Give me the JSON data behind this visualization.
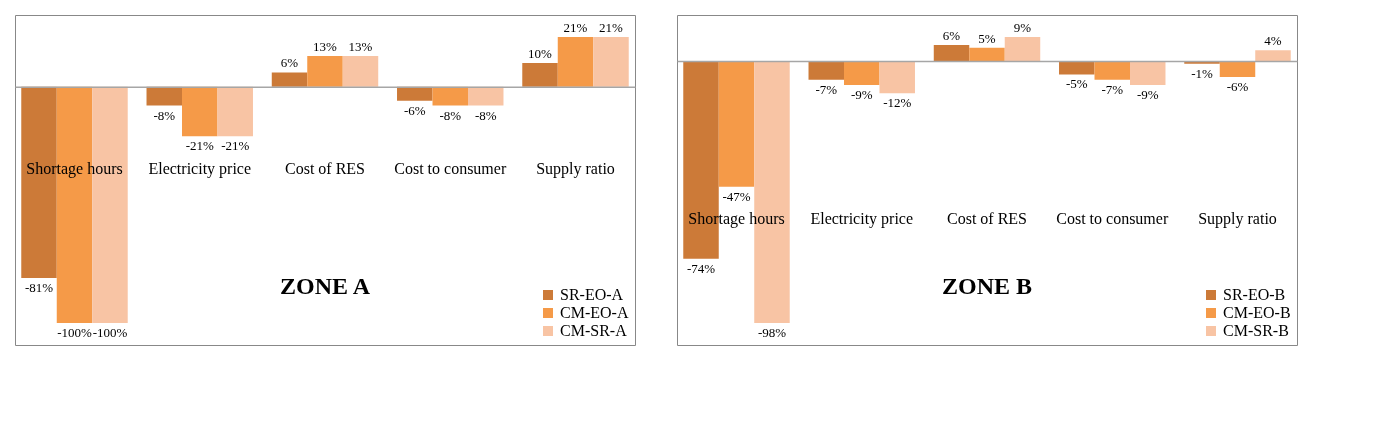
{
  "chart_data": [
    {
      "type": "bar",
      "title": "ZONE A",
      "categories": [
        "Shortage hours",
        "Electricity price",
        "Cost of RES",
        "Cost to consumer",
        "Supply ratio"
      ],
      "legend": "bottom right",
      "series": [
        {
          "name": "SR-EO-A",
          "color": "#cc7a38",
          "values": [
            -81,
            -8,
            6,
            -6,
            10
          ],
          "value_labels": [
            "-81%",
            "-8%",
            "6%",
            "-6%",
            "10%"
          ]
        },
        {
          "name": "CM-EO-A",
          "color": "#f59a48",
          "values": [
            -100,
            -21,
            13,
            -8,
            21
          ],
          "value_labels": [
            "-100%",
            "-21%",
            "13%",
            "-8%",
            "21%"
          ]
        },
        {
          "name": "CM-SR-A",
          "color": "#f8c4a4",
          "values": [
            -100,
            -21,
            13,
            -8,
            21
          ],
          "value_labels": [
            "-100%",
            "-21%",
            "13%",
            "-8%",
            "21%"
          ]
        }
      ]
    },
    {
      "type": "bar",
      "title": "ZONE B",
      "categories": [
        "Shortage hours",
        "Electricity price",
        "Cost of RES",
        "Cost to consumer",
        "Supply ratio"
      ],
      "legend": "bottom right",
      "series": [
        {
          "name": "SR-EO-B",
          "color": "#cc7a38",
          "values": [
            -74,
            -7,
            6,
            -5,
            -1
          ],
          "value_labels": [
            "-74%",
            "-7%",
            "6%",
            "-5%",
            "-1%"
          ]
        },
        {
          "name": "CM-EO-B",
          "color": "#f59a48",
          "values": [
            -47,
            -9,
            5,
            -7,
            -6
          ],
          "value_labels": [
            "-47%",
            "-9%",
            "5%",
            "-7%",
            "-6%"
          ]
        },
        {
          "name": "CM-SR-B",
          "color": "#f8c4a4",
          "values": [
            -98,
            -12,
            9,
            -9,
            4
          ],
          "value_labels": [
            "-98%",
            "-12%",
            "9%",
            "-9%",
            "4%"
          ]
        }
      ]
    }
  ]
}
